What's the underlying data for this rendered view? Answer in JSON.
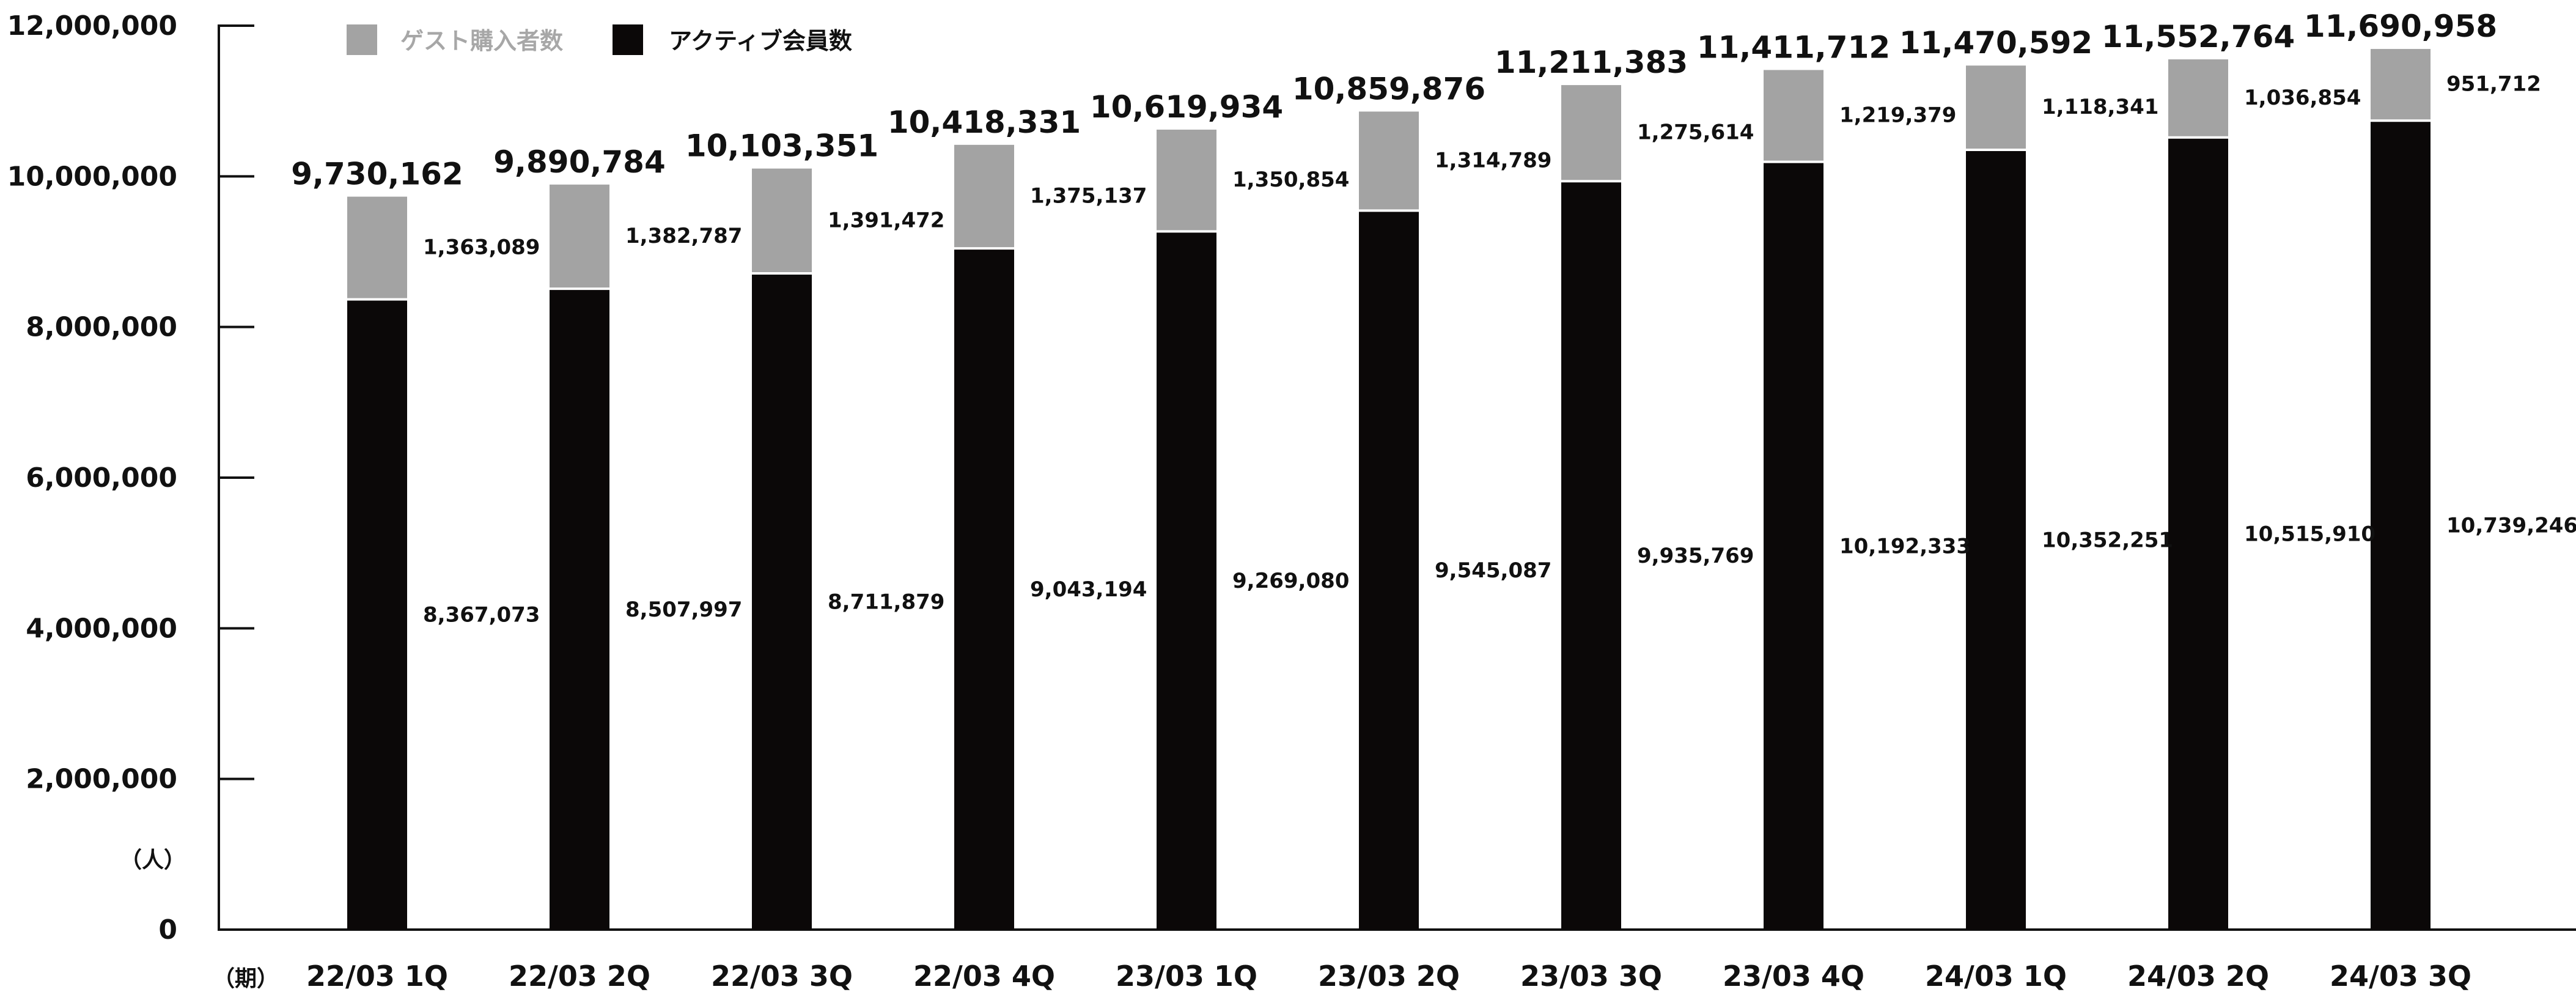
{
  "chart_data": {
    "type": "bar",
    "stacked": true,
    "categories": [
      "22/03 1Q",
      "22/03 2Q",
      "22/03 3Q",
      "22/03 4Q",
      "23/03 1Q",
      "23/03 2Q",
      "23/03 3Q",
      "23/03 4Q",
      "24/03 1Q",
      "24/03 2Q",
      "24/03 3Q"
    ],
    "series": [
      {
        "name": "アクティブ会員数",
        "color": "#0b0808",
        "values": [
          8367073,
          8507997,
          8711879,
          9043194,
          9269080,
          9545087,
          9935769,
          10192333,
          10352251,
          10515910,
          10739246
        ],
        "labels": [
          "8,367,073",
          "8,507,997",
          "8,711,879",
          "9,043,194",
          "9,269,080",
          "9,545,087",
          "9,935,769",
          "10,192,333",
          "10,352,251",
          "10,515,910",
          "10,739,246"
        ]
      },
      {
        "name": "ゲスト購入者数",
        "color": "#a3a3a3",
        "values": [
          1363089,
          1382787,
          1391472,
          1375137,
          1350854,
          1314789,
          1275614,
          1219379,
          1118341,
          1036854,
          951712
        ],
        "labels": [
          "1,363,089",
          "1,382,787",
          "1,391,472",
          "1,375,137",
          "1,350,854",
          "1,314,789",
          "1,275,614",
          "1,219,379",
          "1,118,341",
          "1,036,854",
          "951,712"
        ]
      }
    ],
    "totals": [
      9730162,
      9890784,
      10103351,
      10418331,
      10619934,
      10859876,
      11211383,
      11411712,
      11470592,
      11552764,
      11690958
    ],
    "total_labels": [
      "9,730,162",
      "9,890,784",
      "10,103,351",
      "10,418,331",
      "10,619,934",
      "10,859,876",
      "11,211,383",
      "11,411,712",
      "11,470,592",
      "11,552,764",
      "11,690,958"
    ],
    "ylim": [
      0,
      12000000
    ],
    "yticks": [
      0,
      2000000,
      4000000,
      6000000,
      8000000,
      10000000,
      12000000
    ],
    "ytick_labels": [
      "0",
      "2,000,000",
      "4,000,000",
      "6,000,000",
      "8,000,000",
      "10,000,000",
      "12,000,000"
    ],
    "ylabel": "（人）",
    "xlabel": "（期）",
    "legend_position": "top-left",
    "grid": false
  }
}
